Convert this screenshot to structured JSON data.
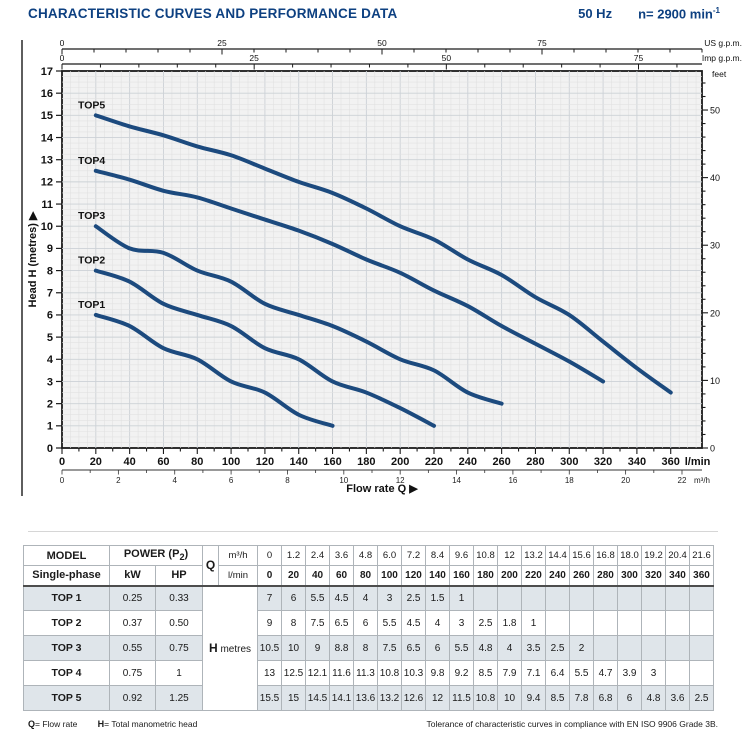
{
  "header": {
    "title": "CHARACTERISTIC CURVES AND PERFORMANCE DATA",
    "frequency": "50 Hz",
    "speed_base": "n= 2900 min",
    "speed_sup": "-1"
  },
  "chart_data": {
    "type": "line",
    "xlabel": "Flow rate Q  ▶",
    "ylabel": "Head H (metres)  ▶",
    "xlim_lmin": [
      0,
      378.5
    ],
    "ylim_m": [
      0,
      17
    ],
    "grid": true,
    "series_color": "#1c4a7e",
    "axes": {
      "us_gpm": {
        "label": "US g.p.m.",
        "labeled_ticks": [
          0,
          25,
          50,
          75
        ],
        "tick_step": 5,
        "lmin_per_unit": 3.785
      },
      "imp_gpm": {
        "label": "Imp g.p.m.",
        "labeled_ticks": [
          0,
          25,
          50,
          75
        ],
        "tick_step": 5,
        "lmin_per_unit": 4.546
      },
      "lmin": {
        "label": "l/min",
        "label_step": 20,
        "minor_step": 10,
        "max_label": 360
      },
      "m3h": {
        "label": "m³/h",
        "label_step": 2,
        "max_label": 22,
        "lmin_per_unit": 16.6667
      },
      "feet": {
        "label": "feet",
        "label_step": 10,
        "minor_step": 2,
        "max_label": 50,
        "m_per_unit": 0.3048
      }
    },
    "series": [
      {
        "name": "TOP1",
        "x_lmin": [
          20,
          40,
          60,
          80,
          100,
          120,
          140,
          160
        ],
        "head_m": [
          6,
          5.5,
          4.5,
          4,
          3,
          2.5,
          1.5,
          1
        ]
      },
      {
        "name": "TOP2",
        "x_lmin": [
          20,
          40,
          60,
          80,
          100,
          120,
          140,
          160,
          180,
          200,
          220
        ],
        "head_m": [
          8,
          7.5,
          6.5,
          6,
          5.5,
          4.5,
          4,
          3,
          2.5,
          1.8,
          1
        ]
      },
      {
        "name": "TOP3",
        "x_lmin": [
          20,
          40,
          60,
          80,
          100,
          120,
          140,
          160,
          180,
          200,
          220,
          240,
          260
        ],
        "head_m": [
          10,
          9,
          8.8,
          8,
          7.5,
          6.5,
          6,
          5.5,
          4.8,
          4,
          3.5,
          2.5,
          2
        ]
      },
      {
        "name": "TOP4",
        "x_lmin": [
          20,
          40,
          60,
          80,
          100,
          120,
          140,
          160,
          180,
          200,
          220,
          240,
          260,
          280,
          300,
          320
        ],
        "head_m": [
          12.5,
          12.1,
          11.6,
          11.3,
          10.8,
          10.3,
          9.8,
          9.2,
          8.5,
          7.9,
          7.1,
          6.4,
          5.5,
          4.7,
          3.9,
          3
        ]
      },
      {
        "name": "TOP5",
        "x_lmin": [
          20,
          40,
          60,
          80,
          100,
          120,
          140,
          160,
          180,
          200,
          220,
          240,
          260,
          280,
          300,
          320,
          340,
          360
        ],
        "head_m": [
          15,
          14.5,
          14.1,
          13.6,
          13.2,
          12.6,
          12,
          11.5,
          10.8,
          10,
          9.4,
          8.5,
          7.8,
          6.8,
          6,
          4.8,
          3.6,
          2.5
        ]
      }
    ]
  },
  "table": {
    "header": {
      "model_label": "MODEL",
      "model_sub": "Single-phase",
      "power_prefix": "POWER (P",
      "power_sub": "2",
      "power_suffix": ")",
      "kw_label": "kW",
      "hp_label": "HP",
      "q_label": "Q",
      "m3h_label": "m³/h",
      "lmin_label": "l/min",
      "m3h_values": [
        "0",
        "1.2",
        "2.4",
        "3.6",
        "4.8",
        "6.0",
        "7.2",
        "8.4",
        "9.6",
        "10.8",
        "12",
        "13.2",
        "14.4",
        "15.6",
        "16.8",
        "18.0",
        "19.2",
        "20.4",
        "21.6"
      ],
      "lmin_values": [
        "0",
        "20",
        "40",
        "60",
        "80",
        "100",
        "120",
        "140",
        "160",
        "180",
        "200",
        "220",
        "240",
        "260",
        "280",
        "300",
        "320",
        "340",
        "360"
      ]
    },
    "h_label": "H",
    "h_unit": "metres",
    "rows": [
      {
        "model": "TOP 1",
        "kw": "0.25",
        "hp": "0.33",
        "h": [
          "7",
          "6",
          "5.5",
          "4.5",
          "4",
          "3",
          "2.5",
          "1.5",
          "1",
          "",
          "",
          "",
          "",
          "",
          "",
          "",
          "",
          "",
          ""
        ]
      },
      {
        "model": "TOP 2",
        "kw": "0.37",
        "hp": "0.50",
        "h": [
          "9",
          "8",
          "7.5",
          "6.5",
          "6",
          "5.5",
          "4.5",
          "4",
          "3",
          "2.5",
          "1.8",
          "1",
          "",
          "",
          "",
          "",
          "",
          "",
          ""
        ]
      },
      {
        "model": "TOP 3",
        "kw": "0.55",
        "hp": "0.75",
        "h": [
          "10.5",
          "10",
          "9",
          "8.8",
          "8",
          "7.5",
          "6.5",
          "6",
          "5.5",
          "4.8",
          "4",
          "3.5",
          "2.5",
          "2",
          "",
          "",
          "",
          "",
          ""
        ]
      },
      {
        "model": "TOP 4",
        "kw": "0.75",
        "hp": "1",
        "h": [
          "13",
          "12.5",
          "12.1",
          "11.6",
          "11.3",
          "10.8",
          "10.3",
          "9.8",
          "9.2",
          "8.5",
          "7.9",
          "7.1",
          "6.4",
          "5.5",
          "4.7",
          "3.9",
          "3",
          "",
          ""
        ]
      },
      {
        "model": "TOP 5",
        "kw": "0.92",
        "hp": "1.25",
        "h": [
          "15.5",
          "15",
          "14.5",
          "14.1",
          "13.6",
          "13.2",
          "12.6",
          "12",
          "11.5",
          "10.8",
          "10",
          "9.4",
          "8.5",
          "7.8",
          "6.8",
          "6",
          "4.8",
          "3.6",
          "2.5"
        ]
      }
    ]
  },
  "footer": {
    "q_symbol": "Q",
    "q_text": "= Flow rate",
    "h_symbol": "H",
    "h_text": "= Total manometric head",
    "tolerance": "Tolerance of characteristic curves in compliance with EN ISO 9906 Grade 3B."
  }
}
